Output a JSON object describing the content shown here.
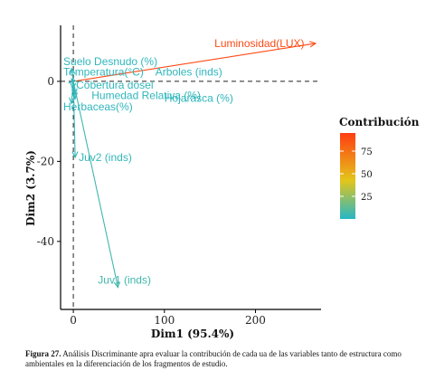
{
  "chart_data": {
    "type": "scatter",
    "subtype": "pca-variable-biplot",
    "xlabel": "Dim1 (95.4%)",
    "ylabel": "Dim2 (3.7%)",
    "xlim": [
      -14,
      272
    ],
    "ylim": [
      -57,
      14
    ],
    "xticks": [
      0,
      100,
      200
    ],
    "yticks": [
      0,
      -20,
      -40
    ],
    "grid": false,
    "reference_lines": "dashed lines at x=0 and y=0",
    "legend": {
      "title": "Contribución",
      "placement": "right",
      "ticks": [
        75,
        50,
        25
      ],
      "range": [
        0,
        95
      ]
    },
    "colors": {
      "low": "#2bb6c0",
      "mid": "#e2c21d",
      "high": "#ff4a14"
    },
    "variables": [
      {
        "name": "Luminosidad(LUX)",
        "x": 266,
        "y": 9.5,
        "contrib": 95
      },
      {
        "name": "Suelo Desnudo (%)",
        "x": -2,
        "y": 3.2,
        "contrib": 1
      },
      {
        "name": "Temperatura(°C)",
        "x": -2,
        "y": 0.6,
        "contrib": 1
      },
      {
        "name": "Arboles (inds)",
        "x": 1,
        "y": 0.3,
        "contrib": 1
      },
      {
        "name": "Cobertura dosel",
        "x": -1,
        "y": -1.8,
        "contrib": 1
      },
      {
        "name": "Humedad Relativa (%)",
        "x": 2,
        "y": -3.3,
        "contrib": 1
      },
      {
        "name": "Hojarasca (%)",
        "x": 2,
        "y": -4.3,
        "contrib": 1
      },
      {
        "name": "Herbaceas(%)",
        "x": -2,
        "y": -5.5,
        "contrib": 1
      },
      {
        "name": "Juv2 (inds)",
        "x": 2,
        "y": -19,
        "contrib": 2
      },
      {
        "name": "Juv1 (inds)",
        "x": 49,
        "y": -51.5,
        "contrib": 5
      }
    ]
  },
  "labels": [
    {
      "text": "Luminosidad(LUX)",
      "x": 155,
      "y": 9.5,
      "anchor": "start"
    },
    {
      "text": "Suelo Desnudo (%)",
      "x": -11,
      "y": 5,
      "anchor": "start"
    },
    {
      "text": "Temperatura(°C)",
      "x": -11,
      "y": 2.3,
      "anchor": "start"
    },
    {
      "text": "Arboles (inds)",
      "x": 90,
      "y": 2.3,
      "anchor": "start"
    },
    {
      "text": "Cobertura dosel",
      "x": 3,
      "y": -0.9,
      "anchor": "start"
    },
    {
      "text": "Humedad Relativa (%)",
      "x": 20,
      "y": -3.5,
      "anchor": "start"
    },
    {
      "text": "Hojarasca (%)",
      "x": 100,
      "y": -4.2,
      "anchor": "start"
    },
    {
      "text": "Herbaceas(%)",
      "x": -11,
      "y": -6.3,
      "anchor": "start"
    },
    {
      "text": "Juv2 (inds)",
      "x": 6,
      "y": -19,
      "anchor": "start"
    },
    {
      "text": "Juv1 (inds)",
      "x": 27,
      "y": -49.7,
      "anchor": "start"
    }
  ],
  "caption": {
    "bold": "Figura 27.",
    "text": " Análisis Discriminante apra evaluar la contribución de cada ua de las variables tanto de estructura como ambientales en la diferenciación de los fragmentos de estudio."
  }
}
